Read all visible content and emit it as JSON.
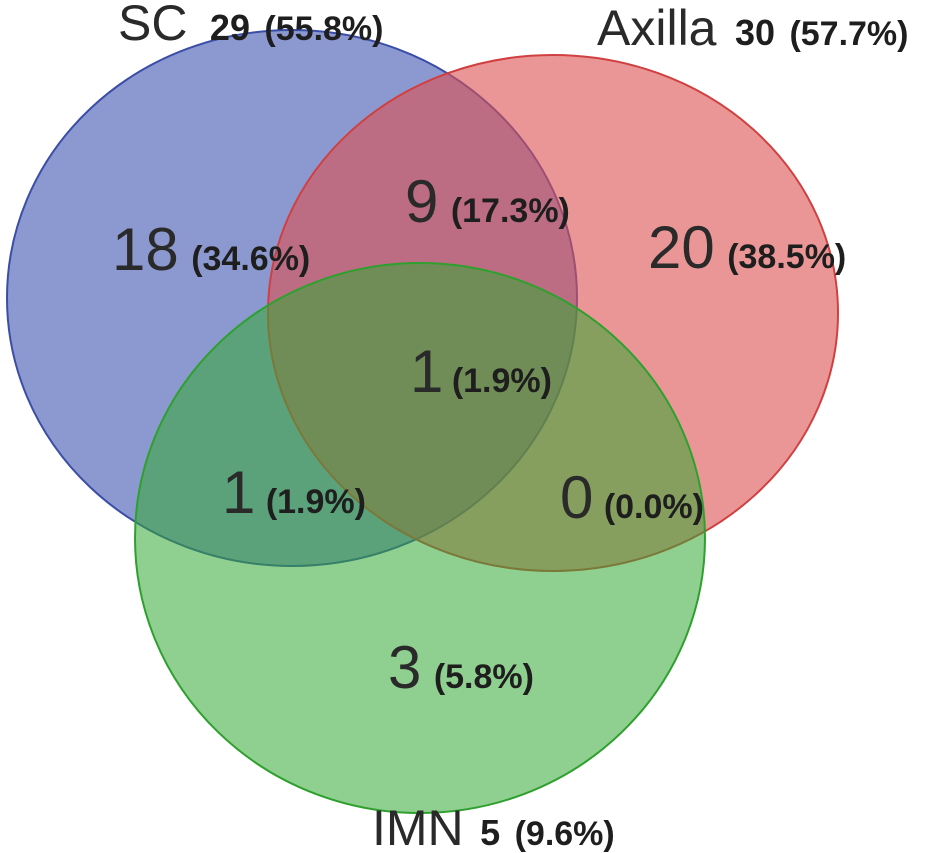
{
  "sets": [
    {
      "id": "sc",
      "name": "SC",
      "total": "29",
      "total_pct": "(55.8%)",
      "color": "#4055b0"
    },
    {
      "id": "axilla",
      "name": "Axilla",
      "total": "30",
      "total_pct": "(57.7%)",
      "color": "#de5050"
    },
    {
      "id": "imn",
      "name": "IMN",
      "total": "5",
      "total_pct": "(9.6%)",
      "color": "#33a833"
    }
  ],
  "regions": {
    "sc_only": {
      "count": "18",
      "pct": "(34.6%)"
    },
    "axilla_only": {
      "count": "20",
      "pct": "(38.5%)"
    },
    "imn_only": {
      "count": "3",
      "pct": "(5.8%)"
    },
    "sc_axilla": {
      "count": "9",
      "pct": "(17.3%)"
    },
    "sc_imn": {
      "count": "1",
      "pct": "(1.9%)"
    },
    "axilla_imn": {
      "count": "0",
      "pct": "(0.0%)"
    },
    "all_three": {
      "count": "1",
      "pct": "(1.9%)"
    }
  }
}
